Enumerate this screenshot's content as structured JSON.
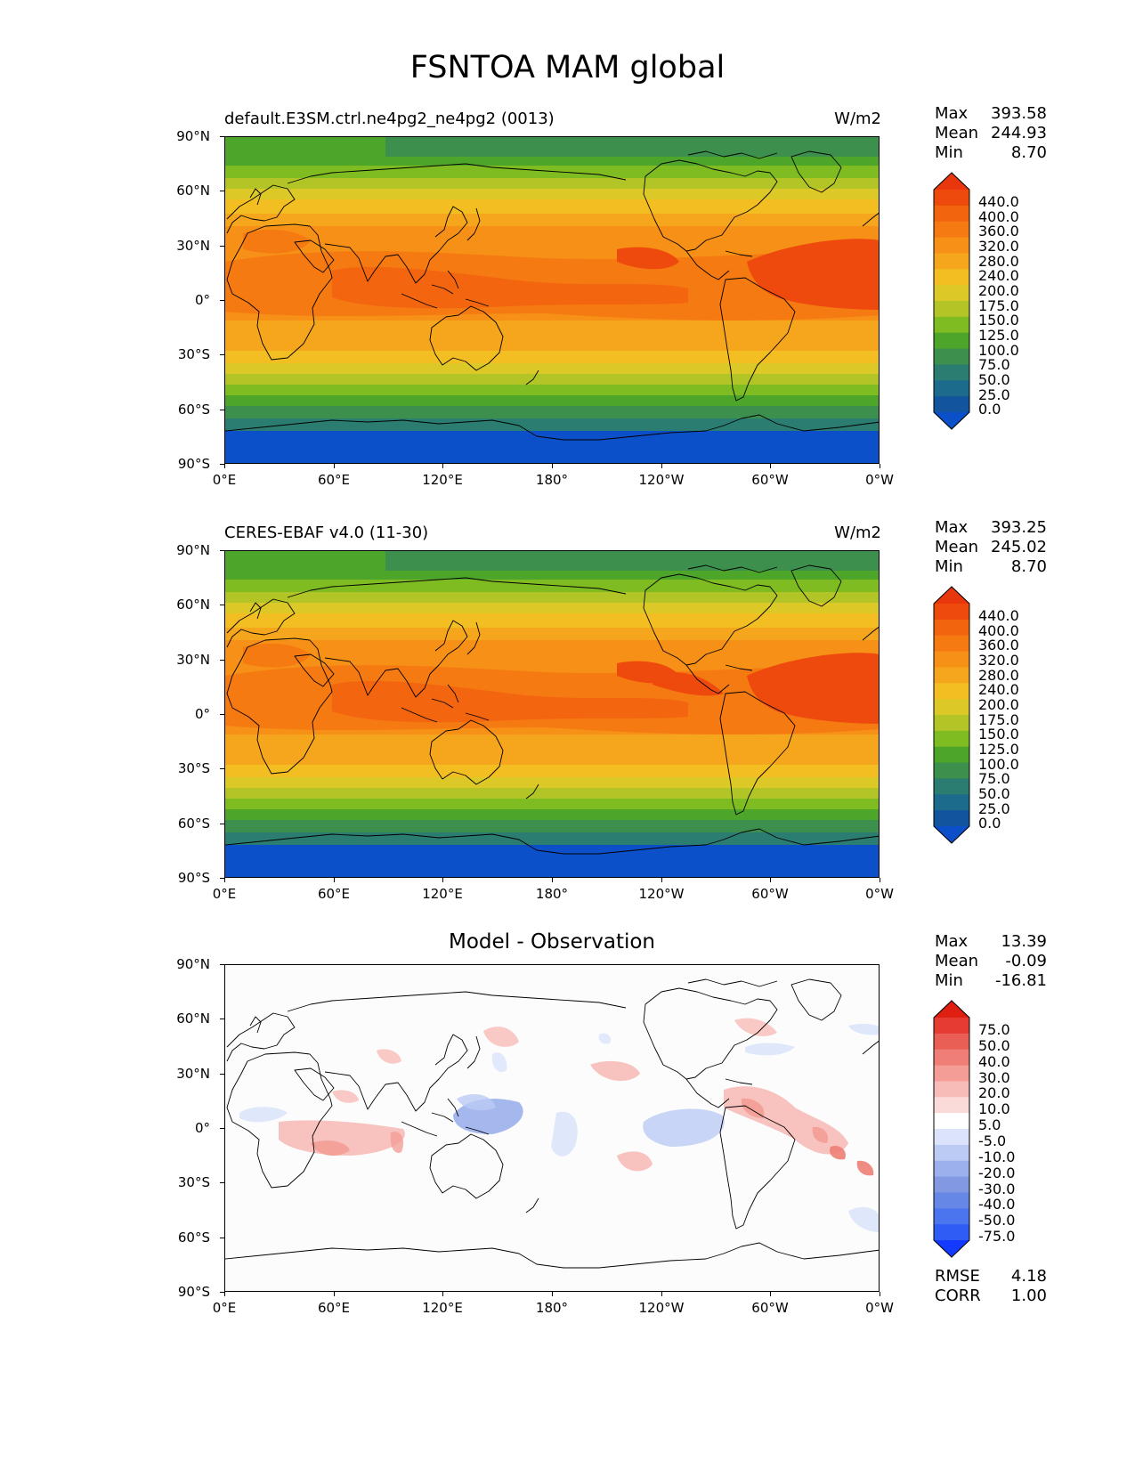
{
  "title": "FSNTOA MAM global",
  "x_ticks": [
    "0°E",
    "60°E",
    "120°E",
    "180°",
    "120°W",
    "60°W",
    "0°W"
  ],
  "y_ticks": [
    "90°N",
    "60°N",
    "30°N",
    "0°",
    "30°S",
    "60°S",
    "90°S"
  ],
  "colors": {
    "full_field": [
      "#0b4fc9",
      "#12559e",
      "#1c6a8c",
      "#2a7d70",
      "#3c8f4c",
      "#4da52a",
      "#7fbc22",
      "#b3c526",
      "#dcc826",
      "#f2be22",
      "#f6a61c",
      "#f79016",
      "#f67a12",
      "#f3640f",
      "#ee4a0d",
      "#e8370c"
    ],
    "diff": [
      "#1439ff",
      "#2f5cf5",
      "#4a75ee",
      "#6787e6",
      "#8299e2",
      "#9bb0ec",
      "#bccbf4",
      "#dce4fb",
      "#ffffff",
      "#fbdada",
      "#f7bcb8",
      "#f39d96",
      "#ee7e76",
      "#ea5f55",
      "#e43c33",
      "#df1f12"
    ]
  },
  "panels": [
    {
      "title_left": "default.E3SM.ctrl.ne4pg2_ne4pg2 (0013)",
      "units": "W/m2",
      "stats": [
        {
          "label": "Max",
          "value": "393.58"
        },
        {
          "label": "Mean",
          "value": "244.93"
        },
        {
          "label": "Min",
          "value": "8.70"
        }
      ],
      "colorbar_levels": [
        "440.0",
        "400.0",
        "360.0",
        "320.0",
        "280.0",
        "240.0",
        "200.0",
        "175.0",
        "150.0",
        "125.0",
        "100.0",
        "75.0",
        "50.0",
        "25.0",
        "0.0"
      ]
    },
    {
      "title_left": "CERES-EBAF v4.0 (11-30)",
      "units": "W/m2",
      "stats": [
        {
          "label": "Max",
          "value": "393.25"
        },
        {
          "label": "Mean",
          "value": "245.02"
        },
        {
          "label": "Min",
          "value": "8.70"
        }
      ],
      "colorbar_levels": [
        "440.0",
        "400.0",
        "360.0",
        "320.0",
        "280.0",
        "240.0",
        "200.0",
        "175.0",
        "150.0",
        "125.0",
        "100.0",
        "75.0",
        "50.0",
        "25.0",
        "0.0"
      ]
    },
    {
      "title_center": "Model - Observation",
      "stats": [
        {
          "label": "Max",
          "value": "13.39"
        },
        {
          "label": "Mean",
          "value": "-0.09"
        },
        {
          "label": "Min",
          "value": "-16.81"
        }
      ],
      "colorbar_levels": [
        "75.0",
        "50.0",
        "40.0",
        "30.0",
        "20.0",
        "10.0",
        "5.0",
        "-5.0",
        "-10.0",
        "-20.0",
        "-30.0",
        "-40.0",
        "-50.0",
        "-75.0"
      ],
      "extra_stats": [
        {
          "label": "RMSE",
          "value": "4.18"
        },
        {
          "label": "CORR",
          "value": "1.00"
        }
      ]
    }
  ]
}
